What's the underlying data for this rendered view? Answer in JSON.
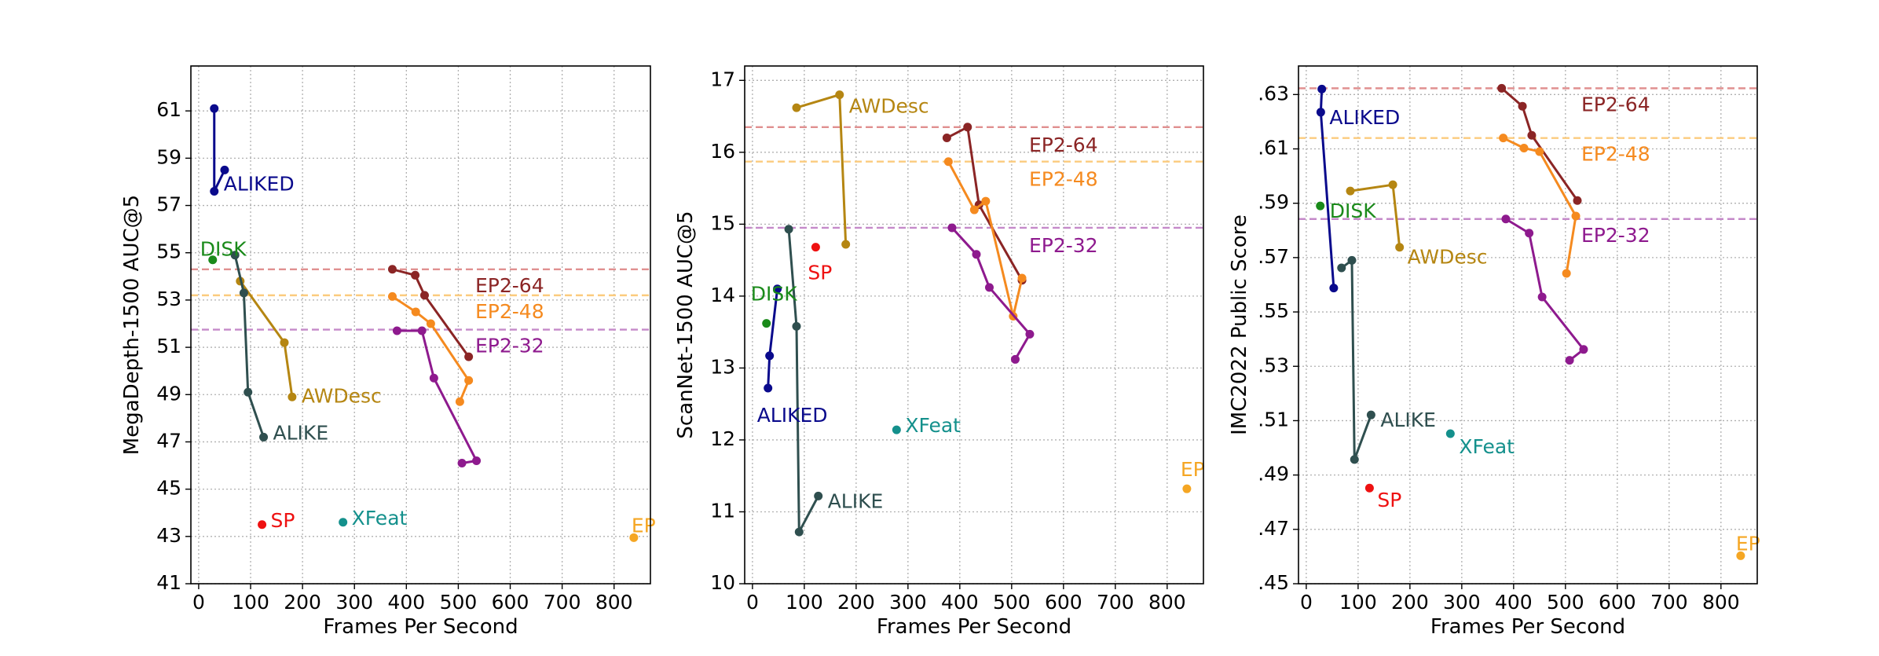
{
  "chart_data": [
    {
      "type": "line",
      "ylabel": "MegaDepth-1500 AUC@5",
      "xlabel": "Frames Per Second",
      "xlim": [
        -15,
        870
      ],
      "ylim": [
        41,
        62.9
      ],
      "xticks": [
        0,
        100,
        200,
        300,
        400,
        500,
        600,
        700,
        800
      ],
      "yticks": [
        41,
        43,
        45,
        47,
        49,
        51,
        53,
        55,
        57,
        59,
        61
      ],
      "ytick_labels": [
        "41",
        "43",
        "45",
        "47",
        "49",
        "51",
        "53",
        "55",
        "57",
        "59",
        "61"
      ],
      "grid": true,
      "hlines": [
        {
          "name": "EP2-64",
          "y": 54.3,
          "color": "#e09090"
        },
        {
          "name": "EP2-48",
          "y": 53.2,
          "color": "#fbcb7e"
        },
        {
          "name": "EP2-32",
          "y": 51.75,
          "color": "#c58ac9"
        }
      ],
      "series": [
        {
          "name": "ALIKED",
          "color": "#0a0a8c",
          "x": [
            30,
            30,
            50
          ],
          "y": [
            61.1,
            57.6,
            58.5
          ]
        },
        {
          "name": "DISK",
          "color": "#1a8a1a",
          "x": [
            27
          ],
          "y": [
            54.7
          ]
        },
        {
          "name": "AWDesc",
          "color": "#b58612",
          "x": [
            80,
            165,
            180
          ],
          "y": [
            53.8,
            51.2,
            48.9
          ]
        },
        {
          "name": "ALIKE",
          "color": "#2f4f4f",
          "x": [
            70,
            87,
            95,
            125
          ],
          "y": [
            54.9,
            53.3,
            49.1,
            47.2
          ]
        },
        {
          "name": "SP",
          "color": "#ee1111",
          "x": [
            122
          ],
          "y": [
            43.5
          ]
        },
        {
          "name": "XFeat",
          "color": "#14908c",
          "x": [
            278
          ],
          "y": [
            43.6
          ]
        },
        {
          "name": "EP",
          "color": "#f5a623",
          "x": [
            838
          ],
          "y": [
            42.95
          ]
        },
        {
          "name": "EP2-64",
          "color": "#8b2525",
          "x": [
            373,
            417,
            435,
            520
          ],
          "y": [
            54.3,
            54.05,
            53.2,
            50.6
          ]
        },
        {
          "name": "EP2-48",
          "color": "#f58a1f",
          "x": [
            373,
            418,
            447,
            520,
            503
          ],
          "y": [
            53.15,
            52.5,
            52.0,
            49.6,
            48.7
          ]
        },
        {
          "name": "EP2-32",
          "color": "#8e1a8e",
          "x": [
            382,
            430,
            453,
            535,
            507
          ],
          "y": [
            51.7,
            51.7,
            49.7,
            46.2,
            46.1
          ]
        }
      ],
      "labels": [
        {
          "text": "ALIKED",
          "series": "ALIKED"
        },
        {
          "text": "DISK",
          "series": "DISK"
        },
        {
          "text": "AWDesc",
          "series": "AWDesc"
        },
        {
          "text": "ALIKE",
          "series": "ALIKE"
        },
        {
          "text": "SP",
          "series": "SP"
        },
        {
          "text": "XFeat",
          "series": "XFeat"
        },
        {
          "text": "EP",
          "series": "EP"
        },
        {
          "text": "EP2-64",
          "series": "EP2-64"
        },
        {
          "text": "EP2-48",
          "series": "EP2-48"
        },
        {
          "text": "EP2-32",
          "series": "EP2-32"
        }
      ]
    },
    {
      "type": "line",
      "ylabel": "ScanNet-1500 AUC@5",
      "xlabel": "Frames Per Second",
      "xlim": [
        -15,
        870
      ],
      "ylim": [
        10,
        17.2
      ],
      "xticks": [
        0,
        100,
        200,
        300,
        400,
        500,
        600,
        700,
        800
      ],
      "yticks": [
        10,
        11,
        12,
        13,
        14,
        15,
        16,
        17
      ],
      "ytick_labels": [
        "10",
        "11",
        "12",
        "13",
        "14",
        "15",
        "16",
        "17"
      ],
      "grid": true,
      "hlines": [
        {
          "name": "EP2-64",
          "y": 16.35,
          "color": "#e09090"
        },
        {
          "name": "EP2-48",
          "y": 15.87,
          "color": "#fbcb7e"
        },
        {
          "name": "EP2-32",
          "y": 14.95,
          "color": "#c58ac9"
        }
      ],
      "series": [
        {
          "name": "ALIKED",
          "color": "#0a0a8c",
          "x": [
            30,
            33,
            48
          ],
          "y": [
            12.72,
            13.17,
            14.1
          ]
        },
        {
          "name": "DISK",
          "color": "#1a8a1a",
          "x": [
            27
          ],
          "y": [
            13.62
          ]
        },
        {
          "name": "AWDesc",
          "color": "#b58612",
          "x": [
            85,
            168,
            180
          ],
          "y": [
            16.62,
            16.8,
            14.72
          ]
        },
        {
          "name": "ALIKE",
          "color": "#2f4f4f",
          "x": [
            70,
            85,
            90,
            127
          ],
          "y": [
            14.93,
            13.58,
            10.72,
            11.22
          ]
        },
        {
          "name": "SP",
          "color": "#ee1111",
          "x": [
            122
          ],
          "y": [
            14.68
          ]
        },
        {
          "name": "XFeat",
          "color": "#14908c",
          "x": [
            278
          ],
          "y": [
            12.14
          ]
        },
        {
          "name": "EP",
          "color": "#f5a623",
          "x": [
            838
          ],
          "y": [
            11.32
          ]
        },
        {
          "name": "EP2-64",
          "color": "#8b2525",
          "x": [
            375,
            415,
            437,
            520
          ],
          "y": [
            16.2,
            16.35,
            15.27,
            14.22
          ]
        },
        {
          "name": "EP2-48",
          "color": "#f58a1f",
          "x": [
            378,
            428,
            450,
            503,
            520
          ],
          "y": [
            15.87,
            15.2,
            15.32,
            13.72,
            14.25
          ]
        },
        {
          "name": "EP2-32",
          "color": "#8e1a8e",
          "x": [
            385,
            432,
            457,
            535,
            507
          ],
          "y": [
            14.95,
            14.58,
            14.12,
            13.47,
            13.12
          ]
        }
      ],
      "labels": [
        {
          "text": "ALIKED",
          "series": "ALIKED"
        },
        {
          "text": "DISK",
          "series": "DISK"
        },
        {
          "text": "AWDesc",
          "series": "AWDesc"
        },
        {
          "text": "ALIKE",
          "series": "ALIKE"
        },
        {
          "text": "SP",
          "series": "SP"
        },
        {
          "text": "XFeat",
          "series": "XFeat"
        },
        {
          "text": "EP",
          "series": "EP"
        },
        {
          "text": "EP2-64",
          "series": "EP2-64"
        },
        {
          "text": "EP2-48",
          "series": "EP2-48"
        },
        {
          "text": "EP2-32",
          "series": "EP2-32"
        }
      ]
    },
    {
      "type": "line",
      "ylabel": "IMC2022 Public Score",
      "xlabel": "Frames Per Second",
      "xlim": [
        -15,
        870
      ],
      "ylim": [
        0.45,
        0.6405
      ],
      "xticks": [
        0,
        100,
        200,
        300,
        400,
        500,
        600,
        700,
        800
      ],
      "yticks": [
        0.45,
        0.47,
        0.49,
        0.51,
        0.53,
        0.55,
        0.57,
        0.59,
        0.61,
        0.63
      ],
      "ytick_labels": [
        ".45",
        ".47",
        ".49",
        ".51",
        ".53",
        ".55",
        ".57",
        ".59",
        ".61",
        ".63"
      ],
      "grid": true,
      "hlines": [
        {
          "name": "EP2-64",
          "y": 0.6323,
          "color": "#e09090"
        },
        {
          "name": "EP2-48",
          "y": 0.614,
          "color": "#fbcb7e"
        },
        {
          "name": "EP2-32",
          "y": 0.5842,
          "color": "#c58ac9"
        }
      ],
      "series": [
        {
          "name": "ALIKED",
          "color": "#0a0a8c",
          "x": [
            30,
            28,
            53
          ],
          "y": [
            0.632,
            0.6235,
            0.5588
          ]
        },
        {
          "name": "DISK",
          "color": "#1a8a1a",
          "x": [
            27
          ],
          "y": [
            0.589
          ]
        },
        {
          "name": "AWDesc",
          "color": "#b58612",
          "x": [
            85,
            167,
            180
          ],
          "y": [
            0.5945,
            0.5968,
            0.5738
          ]
        },
        {
          "name": "ALIKE",
          "color": "#2f4f4f",
          "x": [
            68,
            88,
            93,
            125
          ],
          "y": [
            0.5662,
            0.569,
            0.4957,
            0.5121
          ]
        },
        {
          "name": "SP",
          "color": "#ee1111",
          "x": [
            122
          ],
          "y": [
            0.4852
          ]
        },
        {
          "name": "XFeat",
          "color": "#14908c",
          "x": [
            278
          ],
          "y": [
            0.5052
          ]
        },
        {
          "name": "EP",
          "color": "#f5a623",
          "x": [
            838
          ],
          "y": [
            0.4603
          ]
        },
        {
          "name": "EP2-64",
          "color": "#8b2525",
          "x": [
            377,
            417,
            435,
            523
          ],
          "y": [
            0.6323,
            0.6257,
            0.615,
            0.591
          ]
        },
        {
          "name": "EP2-48",
          "color": "#f58a1f",
          "x": [
            380,
            420,
            450,
            520,
            502
          ],
          "y": [
            0.614,
            0.6103,
            0.609,
            0.5853,
            0.5642
          ]
        },
        {
          "name": "EP2-32",
          "color": "#8e1a8e",
          "x": [
            385,
            430,
            455,
            535,
            508
          ],
          "y": [
            0.5842,
            0.579,
            0.5555,
            0.5362,
            0.5322
          ]
        }
      ],
      "labels": [
        {
          "text": "ALIKED",
          "series": "ALIKED"
        },
        {
          "text": "DISK",
          "series": "DISK"
        },
        {
          "text": "AWDesc",
          "series": "AWDesc"
        },
        {
          "text": "ALIKE",
          "series": "ALIKE"
        },
        {
          "text": "SP",
          "series": "SP"
        },
        {
          "text": "XFeat",
          "series": "XFeat"
        },
        {
          "text": "EP",
          "series": "EP"
        },
        {
          "text": "EP2-64",
          "series": "EP2-64"
        },
        {
          "text": "EP2-48",
          "series": "EP2-48"
        },
        {
          "text": "EP2-32",
          "series": "EP2-32"
        }
      ]
    }
  ]
}
